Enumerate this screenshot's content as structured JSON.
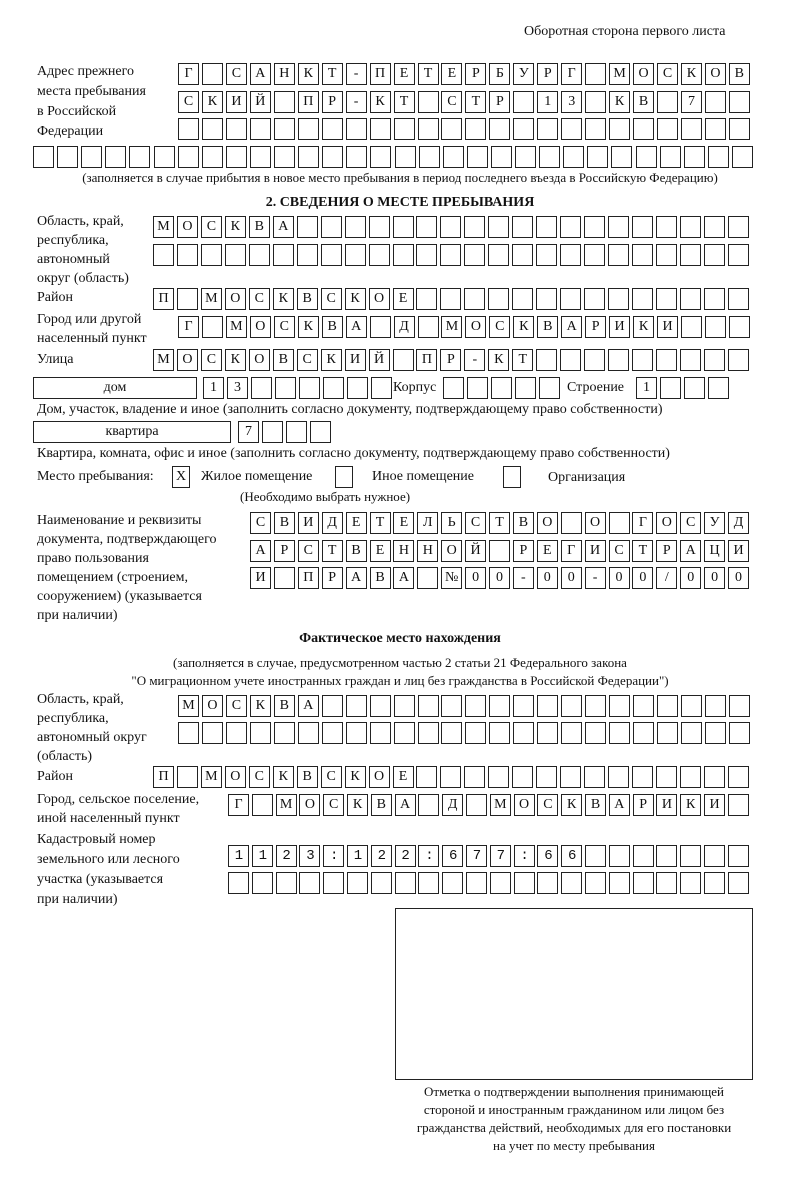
{
  "page_header": "Оборотная сторона первого листа",
  "previous_address": {
    "label": [
      "Адрес прежнего",
      "места пребывания",
      "в Российской",
      "Федерации"
    ],
    "rows": [
      "Г САНКТ-ПЕТЕРБУРГ МОСКОВ",
      "СКИЙ ПР-КТ СТР 13 КВ 7",
      "",
      ""
    ],
    "note": "(заполняется в случае прибытия в новое место пребывания в период последнего въезда в Российскую Федерацию)"
  },
  "section2": {
    "title": "2. СВЕДЕНИЯ О МЕСТЕ ПРЕБЫВАНИЯ",
    "region_label": [
      "Область, край,",
      "республика,",
      "автономный",
      "округ (область)"
    ],
    "region_rows": [
      "МОСКВА",
      ""
    ],
    "district_label": "Район",
    "district": "П МОСКВСКОЕ",
    "city_label": [
      "Город или другой",
      "населенный пункт"
    ],
    "city": "Г МОСКВА Д МОСКВАРИКИ",
    "street_label": "Улица",
    "street": "МОСКОВСКИЙ ПР-КТ",
    "house_type": "дом",
    "house": "13",
    "building_label": "Корпус",
    "building": "",
    "structure_label": "Строение",
    "structure": "1",
    "house_note": "Дом, участок, владение и иное (заполнить согласно документу, подтверждающему право собственности)",
    "apartment_type": "квартира",
    "apartment": "7",
    "apartment_note": "Квартира, комната, офис и иное (заполнить согласно документу, подтверждающему право собственности)",
    "place_label": "Место пребывания:",
    "options": [
      {
        "label": "Жилое помещение",
        "mark": "X"
      },
      {
        "label": "Иное помещение",
        "mark": ""
      },
      {
        "label": "Организация",
        "mark": ""
      }
    ],
    "choose_note": "(Необходимо выбрать нужное)",
    "document_label": [
      "Наименование и реквизиты",
      "документа, подтверждающего",
      "право пользования",
      "помещением (строением,",
      "сооружением) (указывается",
      "при наличии)"
    ],
    "document_rows": [
      "СВИДЕТЕЛЬСТВО О ГОСУД",
      "АРСТВЕННОЙ РЕГИСТРАЦИ",
      "И ПРАВА №00-00-00/000"
    ]
  },
  "actual": {
    "title": "Фактическое место нахождения",
    "note1": "(заполняется в случае, предусмотренном частью 2 статьи 21 Федерального закона",
    "note2": "\"О миграционном учете иностранных граждан и лиц без гражданства в Российской Федерации\")",
    "region_label": [
      "Область, край,",
      "республика,",
      "автономный округ",
      "(область)"
    ],
    "region_rows": [
      "МОСКВА",
      ""
    ],
    "district_label": "Район",
    "district": "П МОСКВСКОЕ",
    "city_label": [
      "Город, сельское поселение,",
      "иной населенный пункт"
    ],
    "city": "Г МОСКВА Д МОСКВАРИКИ",
    "cadastral_label": [
      "Кадастровый номер",
      "земельного или лесного",
      "участка (указывается",
      "при наличии)"
    ],
    "cadastral_rows": [
      "1123:122:677:66",
      ""
    ]
  },
  "stamp_caption": [
    "Отметка о подтверждении выполнения принимающей",
    "стороной и иностранным гражданином или лицом без",
    "гражданства действий, необходимых для его постановки",
    "на учет по месту пребывания"
  ]
}
